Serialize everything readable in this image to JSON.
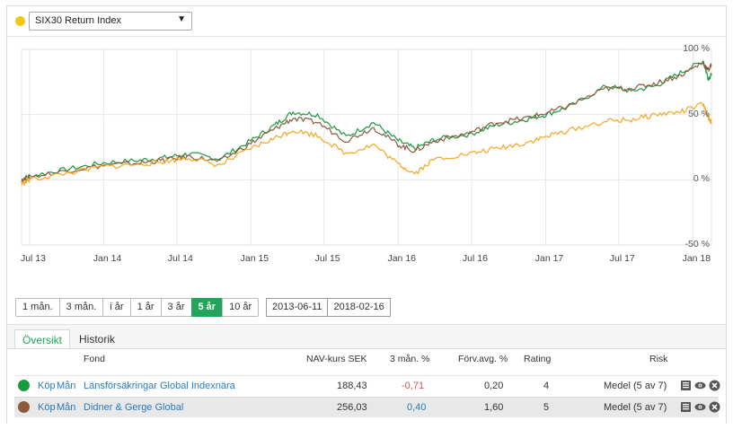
{
  "colors": {
    "accent": "#21a55a",
    "index_dot": "#f5c518",
    "series_green": "#1a9a3e",
    "series_brown": "#8b5a3c",
    "series_orange": "#f5a623",
    "negative": "#d9534f",
    "link": "#2a7bb8"
  },
  "selector": {
    "index_name": "SIX30 Return Index",
    "caret": "▼"
  },
  "chart_data": {
    "type": "line",
    "x_ticks": [
      "Jul 13",
      "Jan 14",
      "Jul 14",
      "Jan 15",
      "Jul 15",
      "Jan 16",
      "Jul 16",
      "Jan 17",
      "Jul 17",
      "Jan 18"
    ],
    "y_ticks": [
      "100 %",
      "50 %",
      "0 %",
      "-50 %"
    ],
    "ylim": [
      -50,
      100
    ],
    "xlim": [
      "2013-06-11",
      "2018-02-16"
    ],
    "grid": true,
    "series": [
      {
        "color": "#1a9a3e",
        "x": [
          "2013-06-11",
          "2013-07-01",
          "2013-10-01",
          "2014-01-01",
          "2014-04-01",
          "2014-06-01",
          "2014-08-01",
          "2014-10-15",
          "2015-01-01",
          "2015-03-01",
          "2015-04-15",
          "2015-06-15",
          "2015-08-25",
          "2015-11-01",
          "2016-01-01",
          "2016-02-11",
          "2016-04-01",
          "2016-06-27",
          "2016-09-01",
          "2016-11-08",
          "2017-01-01",
          "2017-03-01",
          "2017-06-01",
          "2017-08-01",
          "2017-10-01",
          "2017-12-01",
          "2018-01-26",
          "2018-02-08",
          "2018-02-16"
        ],
        "y": [
          0,
          3,
          8,
          13,
          15,
          17,
          20,
          16,
          30,
          42,
          52,
          50,
          33,
          44,
          30,
          24,
          31,
          35,
          42,
          46,
          50,
          56,
          72,
          68,
          72,
          82,
          91,
          78,
          80
        ]
      },
      {
        "color": "#8b5a3c",
        "x": [
          "2013-06-11",
          "2013-07-01",
          "2013-10-01",
          "2014-01-01",
          "2014-04-01",
          "2014-06-01",
          "2014-08-01",
          "2014-10-15",
          "2015-01-01",
          "2015-03-01",
          "2015-04-15",
          "2015-06-15",
          "2015-08-25",
          "2015-11-01",
          "2016-01-01",
          "2016-02-11",
          "2016-04-01",
          "2016-06-27",
          "2016-09-01",
          "2016-11-08",
          "2017-01-01",
          "2017-03-01",
          "2017-06-01",
          "2017-08-01",
          "2017-10-01",
          "2017-12-01",
          "2018-01-26",
          "2018-02-08",
          "2018-02-16"
        ],
        "y": [
          0,
          2,
          7,
          11,
          13,
          15,
          18,
          14,
          28,
          39,
          47,
          44,
          30,
          40,
          27,
          22,
          30,
          36,
          44,
          47,
          51,
          57,
          70,
          70,
          74,
          80,
          90,
          84,
          88
        ]
      },
      {
        "color": "#f5a623",
        "x": [
          "2013-06-11",
          "2013-07-01",
          "2013-10-01",
          "2014-01-01",
          "2014-04-01",
          "2014-06-01",
          "2014-08-01",
          "2014-10-15",
          "2015-01-01",
          "2015-03-01",
          "2015-04-15",
          "2015-06-15",
          "2015-08-25",
          "2015-11-01",
          "2016-01-01",
          "2016-02-11",
          "2016-04-01",
          "2016-06-27",
          "2016-09-01",
          "2016-11-08",
          "2017-01-01",
          "2017-03-01",
          "2017-06-01",
          "2017-08-01",
          "2017-10-01",
          "2017-12-01",
          "2018-01-26",
          "2018-02-08",
          "2018-02-16"
        ],
        "y": [
          -3,
          0,
          5,
          10,
          12,
          14,
          17,
          11,
          24,
          32,
          38,
          34,
          20,
          27,
          12,
          5,
          16,
          20,
          24,
          28,
          33,
          38,
          45,
          46,
          50,
          52,
          58,
          48,
          44
        ]
      }
    ]
  },
  "periods": [
    {
      "label": "1 mån.",
      "active": false
    },
    {
      "label": "3 mån.",
      "active": false
    },
    {
      "label": "i år",
      "active": false
    },
    {
      "label": "1 år",
      "active": false
    },
    {
      "label": "3 år",
      "active": false
    },
    {
      "label": "5 år",
      "active": true
    },
    {
      "label": "10 år",
      "active": false
    }
  ],
  "dates": {
    "from": "2013-06-11",
    "to": "2018-02-16"
  },
  "tabs": {
    "overview": "Översikt",
    "history": "Historik"
  },
  "table": {
    "headers": {
      "fund": "Fond",
      "nav": "NAV-kurs SEK",
      "three_months": "3 mån. %",
      "fee": "Förv.avg. %",
      "rating": "Rating",
      "risk": "Risk"
    },
    "rows": [
      {
        "color": "#1a9a3e",
        "buy": "Köp",
        "sell": "Mån",
        "fund": "Länsförsäkringar Global Indexnära",
        "nav": "188,43",
        "three_months": "-0,71",
        "fee": "0,20",
        "rating": "4",
        "risk": "Medel (5 av 7)"
      },
      {
        "color": "#8b5a3c",
        "buy": "Köp",
        "sell": "Mån",
        "fund": "Didner & Gerge Global",
        "nav": "256,03",
        "three_months": "0,40",
        "fee": "1,60",
        "rating": "5",
        "risk": "Medel (5 av 7)"
      }
    ]
  }
}
